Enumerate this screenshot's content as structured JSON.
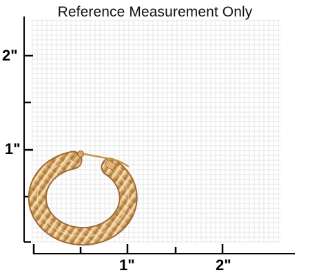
{
  "title": "Reference Measurement Only",
  "axes": {
    "y_labels": [
      "1\"",
      "2\""
    ],
    "x_labels": [
      "1\"",
      "2\""
    ]
  },
  "colors": {
    "grid": "#e6e6e6",
    "axis": "#000000",
    "gold_light": "#f3d7a0",
    "gold_mid": "#d9a868",
    "gold_dark": "#a8743a"
  },
  "product": {
    "icon": "gold-hoop-earring-icon"
  }
}
